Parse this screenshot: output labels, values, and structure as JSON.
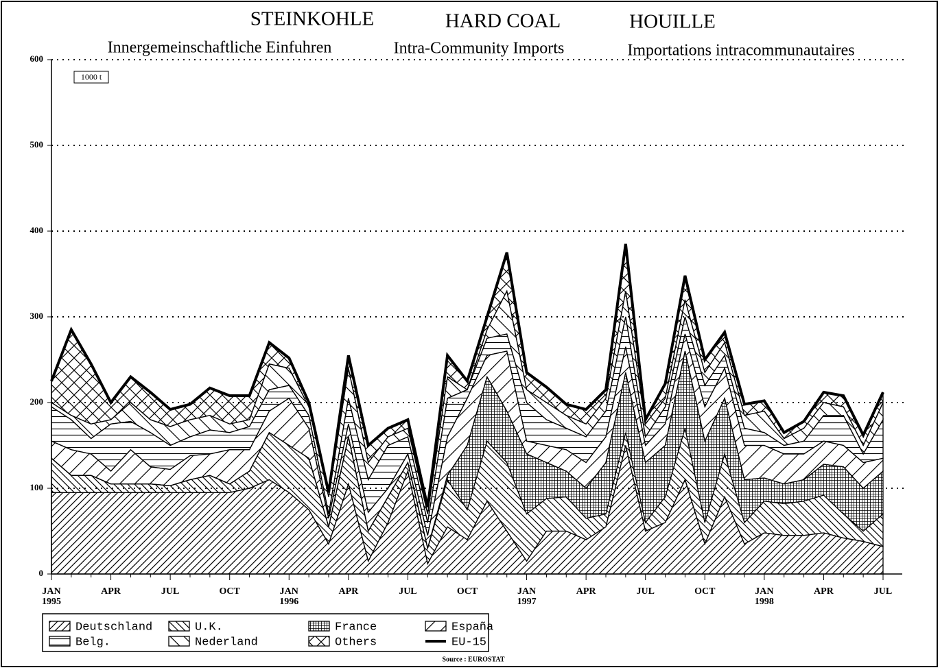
{
  "chart_data": {
    "type": "stacked-area",
    "titles": [
      "STEINKOHLE",
      "HARD COAL",
      "HOUILLE"
    ],
    "subtitles": [
      "Innergemeinschaftliche Einfuhren",
      "Intra-Community Imports",
      "Importations intracommunautaires"
    ],
    "unit": "1000 t",
    "source": "Source : EUROSTAT",
    "categories": [
      "JAN\n1995",
      null,
      null,
      "APR",
      null,
      null,
      "JUL",
      null,
      null,
      "OCT",
      null,
      null,
      "JAN\n1996",
      null,
      null,
      "APR",
      null,
      null,
      "JUL",
      null,
      null,
      "OCT",
      null,
      null,
      "JAN\n1997",
      null,
      null,
      "APR",
      null,
      null,
      "JUL",
      null,
      null,
      "OCT",
      null,
      null,
      "JAN\n1998",
      null,
      null,
      "APR",
      null,
      null,
      "JUL"
    ],
    "ylim": [
      0,
      600
    ],
    "yticks": [
      0,
      100,
      200,
      300,
      400,
      500,
      600
    ],
    "grid": true,
    "series": [
      {
        "name": "Deutschland",
        "color": "#000000",
        "pattern": "diag-up",
        "values": [
          95,
          95,
          95,
          95,
          95,
          95,
          95,
          95,
          95,
          95,
          100,
          110,
          95,
          75,
          35,
          105,
          15,
          60,
          120,
          12,
          55,
          40,
          85,
          50,
          15,
          50,
          50,
          40,
          55,
          150,
          50,
          60,
          110,
          35,
          90,
          35,
          48,
          45,
          45,
          48,
          42,
          38,
          32
        ]
      },
      {
        "name": "U.K.",
        "color": "#000000",
        "pattern": "diag-down",
        "values": [
          40,
          20,
          20,
          10,
          10,
          10,
          8,
          15,
          20,
          10,
          20,
          55,
          55,
          60,
          20,
          55,
          35,
          30,
          10,
          18,
          55,
          35,
          70,
          80,
          55,
          38,
          40,
          25,
          15,
          15,
          10,
          30,
          60,
          25,
          50,
          25,
          37,
          37,
          40,
          44,
          28,
          12,
          38
        ]
      },
      {
        "name": "France",
        "color": "#000000",
        "pattern": "grid",
        "values": [
          0,
          0,
          0,
          0,
          0,
          0,
          0,
          0,
          0,
          0,
          0,
          0,
          0,
          0,
          0,
          0,
          0,
          0,
          0,
          0,
          5,
          75,
          75,
          60,
          70,
          42,
          30,
          35,
          60,
          70,
          70,
          60,
          90,
          95,
          65,
          50,
          27,
          23,
          25,
          36,
          55,
          50,
          50
        ]
      },
      {
        "name": "España",
        "color": "#000000",
        "pattern": "diag-up-wide",
        "values": [
          20,
          30,
          25,
          15,
          40,
          20,
          19,
          28,
          25,
          40,
          25,
          25,
          55,
          35,
          10,
          15,
          22,
          10,
          10,
          15,
          45,
          55,
          25,
          70,
          15,
          20,
          25,
          30,
          30,
          30,
          20,
          25,
          20,
          40,
          35,
          40,
          38,
          35,
          30,
          27,
          25,
          30,
          15
        ]
      },
      {
        "name": "Belg.",
        "color": "#000000",
        "pattern": "horizontal",
        "values": [
          40,
          35,
          18,
          55,
          33,
          40,
          28,
          22,
          28,
          20,
          27,
          25,
          15,
          15,
          5,
          30,
          38,
          50,
          20,
          15,
          45,
          10,
          20,
          20,
          45,
          30,
          25,
          30,
          30,
          35,
          10,
          20,
          20,
          25,
          15,
          20,
          15,
          10,
          15,
          30,
          35,
          10,
          45
        ]
      },
      {
        "name": "Nederland",
        "color": "#000000",
        "pattern": "diag-down-wide",
        "values": [
          5,
          5,
          17,
          5,
          22,
          15,
          22,
          20,
          17,
          10,
          8,
          30,
          20,
          10,
          20,
          35,
          20,
          10,
          10,
          10,
          25,
          0,
          10,
          50,
          15,
          20,
          15,
          15,
          15,
          30,
          15,
          10,
          20,
          15,
          15,
          15,
          25,
          8,
          15,
          15,
          10,
          10,
          20
        ]
      },
      {
        "name": "Others",
        "color": "#000000",
        "pattern": "cross",
        "values": [
          25,
          100,
          70,
          20,
          30,
          32,
          20,
          18,
          32,
          33,
          28,
          25,
          12,
          5,
          5,
          15,
          20,
          10,
          10,
          8,
          25,
          10,
          15,
          45,
          20,
          18,
          13,
          17,
          10,
          55,
          5,
          17,
          28,
          15,
          12,
          13,
          12,
          7,
          8,
          12,
          13,
          12,
          12
        ]
      }
    ],
    "total": {
      "name": "EU-15",
      "color": "#000000",
      "values": [
        225,
        285,
        245,
        200,
        230,
        212,
        192,
        198,
        217,
        208,
        208,
        270,
        252,
        200,
        95,
        255,
        150,
        170,
        180,
        78,
        255,
        225,
        300,
        375,
        235,
        218,
        198,
        192,
        215,
        385,
        180,
        222,
        348,
        250,
        282,
        198,
        202,
        165,
        178,
        212,
        208,
        162,
        212
      ]
    }
  }
}
